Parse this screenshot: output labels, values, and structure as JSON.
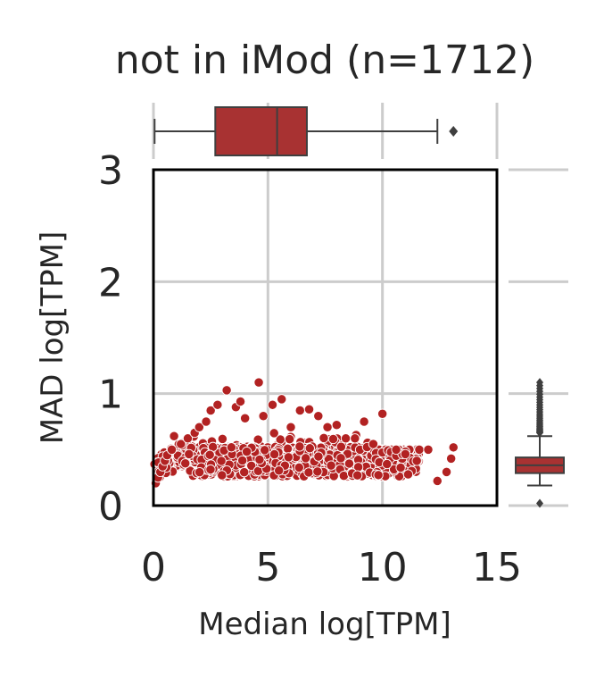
{
  "chart_data": {
    "type": "scatter",
    "title": "not in iMod (n=1712)",
    "xlabel": "Median log[TPM]",
    "ylabel": "MAD log[TPM]",
    "xlim": [
      0,
      15
    ],
    "ylim": [
      0,
      3
    ],
    "xticks": [
      "0",
      "5",
      "10",
      "15"
    ],
    "yticks": [
      "0",
      "1",
      "2",
      "3"
    ],
    "grid": true,
    "point_color": "#b22222",
    "box_color": "#a83232",
    "n_points": 1712,
    "points_sample": [
      [
        0.1,
        0.2
      ],
      [
        0.2,
        0.25
      ],
      [
        0.3,
        0.3
      ],
      [
        0.4,
        0.35
      ],
      [
        0.5,
        0.4
      ],
      [
        0.6,
        0.45
      ],
      [
        0.8,
        0.5
      ],
      [
        0.9,
        0.62
      ],
      [
        1.2,
        0.55
      ],
      [
        1.5,
        0.6
      ],
      [
        1.8,
        0.65
      ],
      [
        2.0,
        0.7
      ],
      [
        2.3,
        0.75
      ],
      [
        2.5,
        0.85
      ],
      [
        2.8,
        0.9
      ],
      [
        3.2,
        1.03
      ],
      [
        3.6,
        0.88
      ],
      [
        3.8,
        0.93
      ],
      [
        4.0,
        0.78
      ],
      [
        4.6,
        1.1
      ],
      [
        4.8,
        0.8
      ],
      [
        5.2,
        0.9
      ],
      [
        5.6,
        0.95
      ],
      [
        6.0,
        0.7
      ],
      [
        6.4,
        0.85
      ],
      [
        6.8,
        0.86
      ],
      [
        7.2,
        0.8
      ],
      [
        7.6,
        0.7
      ],
      [
        8.0,
        0.72
      ],
      [
        8.4,
        0.6
      ],
      [
        8.8,
        0.6
      ],
      [
        9.2,
        0.75
      ],
      [
        9.6,
        0.55
      ],
      [
        10.0,
        0.82
      ],
      [
        10.6,
        0.5
      ],
      [
        11.0,
        0.46
      ],
      [
        11.5,
        0.4
      ],
      [
        12.0,
        0.5
      ],
      [
        12.4,
        0.22
      ],
      [
        12.8,
        0.3
      ],
      [
        13.0,
        0.42
      ],
      [
        13.1,
        0.52
      ]
    ],
    "marginal_x_box": {
      "whisker_low": 0.05,
      "q1": 2.7,
      "median": 5.4,
      "q3": 6.7,
      "whisker_high": 12.4,
      "outliers": [
        13.1
      ]
    },
    "marginal_y_box": {
      "whisker_low": 0.18,
      "q1": 0.29,
      "median": 0.36,
      "q3": 0.43,
      "whisker_high": 0.62,
      "outliers_min": 0.65,
      "outliers_max": 1.1,
      "low_outlier": 0.02
    }
  }
}
